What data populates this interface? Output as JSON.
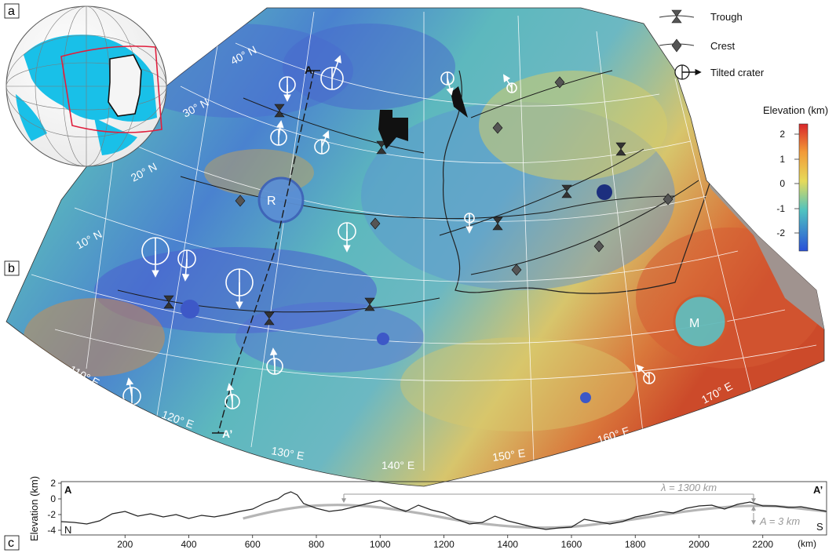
{
  "figure": {
    "panel_a": "a",
    "panel_b": "b",
    "panel_c": "c"
  },
  "map": {
    "lat_labels": [
      "40° N",
      "30° N",
      "20° N",
      "10° N"
    ],
    "lon_labels": [
      "110° E",
      "120° E",
      "130° E",
      "140° E",
      "150° E",
      "160° E",
      "170° E"
    ],
    "profile_start": "A",
    "profile_end": "A’",
    "crater_r": "R",
    "crater_m": "M"
  },
  "legend": {
    "trough": "Trough",
    "crest": "Crest",
    "tilted_crater": "Tilted crater"
  },
  "colorbar": {
    "title": "Elevation (km)",
    "ticks": [
      "2",
      "1",
      "0",
      "-1",
      "-2"
    ],
    "colors": [
      "#e8321e",
      "#f2a23a",
      "#e6d85a",
      "#4fc3c0",
      "#2f5fd8"
    ]
  },
  "profile": {
    "ylabel": "Elevation (km)",
    "yticks": [
      "2",
      "0",
      "-2",
      "-4"
    ],
    "xticks": [
      "200",
      "400",
      "600",
      "800",
      "1000",
      "1200",
      "1400",
      "1600",
      "1800",
      "2000",
      "2200"
    ],
    "xunit": "(km)",
    "start_label": "A",
    "end_label": "A’",
    "north": "N",
    "south": "S",
    "wavelength": "λ = 1300 km",
    "amplitude": "A = 3 km",
    "line_color": "#222222",
    "fit_color": "#b5b5b5"
  },
  "chart_data": {
    "type": "line",
    "xlabel": "(km)",
    "ylabel": "Elevation (km)",
    "xlim": [
      0,
      2400
    ],
    "ylim": [
      -4.6,
      2.2
    ],
    "series": [
      {
        "values": [
          [
            0,
            -2.9
          ],
          [
            40,
            -3.0
          ],
          [
            80,
            -3.2
          ],
          [
            120,
            -2.8
          ],
          [
            160,
            -1.9
          ],
          [
            200,
            -1.6
          ],
          [
            240,
            -2.2
          ],
          [
            280,
            -1.9
          ],
          [
            320,
            -2.3
          ],
          [
            360,
            -2.0
          ],
          [
            400,
            -2.5
          ],
          [
            440,
            -2.1
          ],
          [
            480,
            -2.3
          ],
          [
            520,
            -2.0
          ],
          [
            560,
            -1.6
          ],
          [
            600,
            -1.3
          ],
          [
            640,
            -0.5
          ],
          [
            680,
            0.0
          ],
          [
            700,
            0.6
          ],
          [
            720,
            0.9
          ],
          [
            740,
            0.5
          ],
          [
            760,
            -0.6
          ],
          [
            800,
            -1.2
          ],
          [
            840,
            -1.6
          ],
          [
            880,
            -1.4
          ],
          [
            920,
            -1.0
          ],
          [
            960,
            -0.6
          ],
          [
            1000,
            -0.2
          ],
          [
            1040,
            -1.0
          ],
          [
            1080,
            -1.6
          ],
          [
            1120,
            -0.8
          ],
          [
            1160,
            -1.4
          ],
          [
            1200,
            -1.8
          ],
          [
            1240,
            -2.6
          ],
          [
            1280,
            -3.2
          ],
          [
            1320,
            -3.0
          ],
          [
            1360,
            -2.2
          ],
          [
            1400,
            -2.8
          ],
          [
            1440,
            -3.2
          ],
          [
            1480,
            -3.6
          ],
          [
            1520,
            -3.9
          ],
          [
            1560,
            -3.7
          ],
          [
            1600,
            -3.6
          ],
          [
            1640,
            -2.6
          ],
          [
            1680,
            -2.9
          ],
          [
            1720,
            -3.2
          ],
          [
            1760,
            -2.9
          ],
          [
            1800,
            -2.3
          ],
          [
            1840,
            -2.0
          ],
          [
            1880,
            -1.6
          ],
          [
            1920,
            -1.8
          ],
          [
            1960,
            -1.2
          ],
          [
            2000,
            -0.9
          ],
          [
            2040,
            -0.8
          ],
          [
            2080,
            -1.3
          ],
          [
            2120,
            -0.7
          ],
          [
            2160,
            -0.4
          ],
          [
            2200,
            -0.9
          ],
          [
            2240,
            -0.9
          ],
          [
            2280,
            -1.1
          ],
          [
            2320,
            -1.0
          ],
          [
            2360,
            -1.3
          ],
          [
            2400,
            -1.6
          ]
        ]
      },
      {
        "values": [
          [
            570,
            -2.5
          ],
          [
            700,
            -1.1
          ],
          [
            900,
            -0.6
          ],
          [
            1100,
            -1.6
          ],
          [
            1300,
            -3.2
          ],
          [
            1550,
            -3.9
          ],
          [
            1800,
            -2.6
          ],
          [
            2000,
            -1.3
          ],
          [
            2200,
            -0.7
          ],
          [
            2400,
            -1.6
          ]
        ]
      }
    ]
  }
}
